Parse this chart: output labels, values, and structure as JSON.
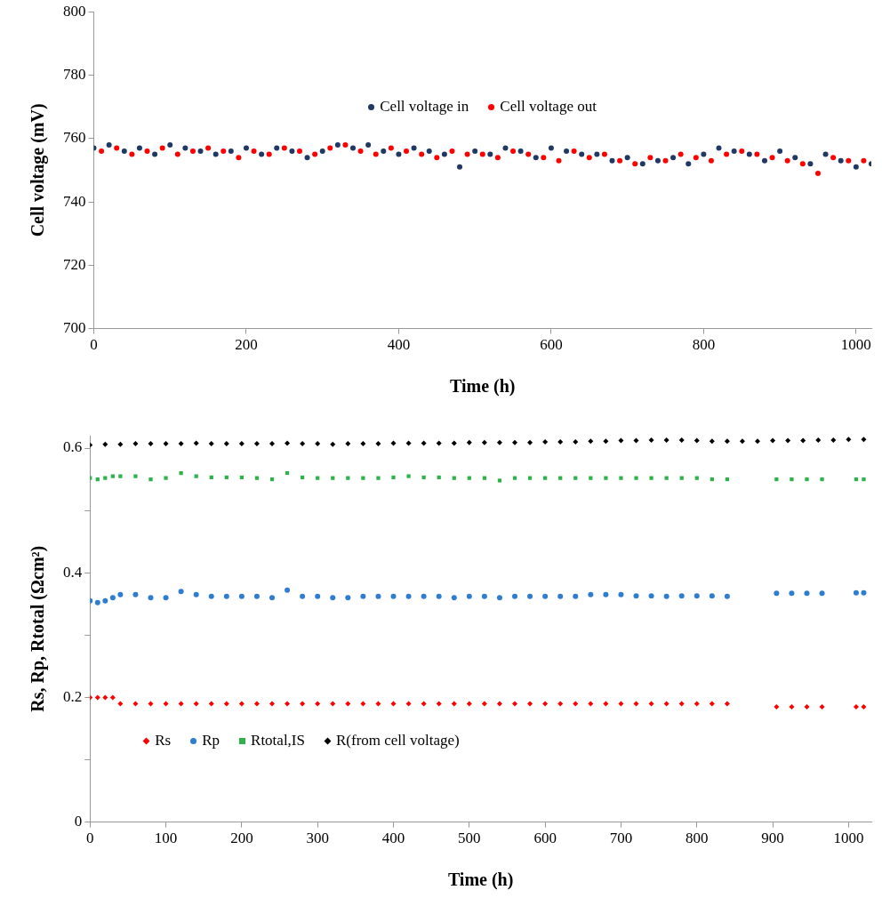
{
  "chart_data": [
    {
      "type": "scatter",
      "xlabel": "Time (h)",
      "ylabel": "Cell voltage (mV)",
      "xlim": [
        0,
        1020
      ],
      "xticks": [
        0,
        200,
        400,
        600,
        800,
        1000
      ],
      "ylim": [
        700,
        800
      ],
      "yticks": [
        700,
        720,
        740,
        760,
        780,
        800
      ],
      "grid": false,
      "legend": "top",
      "marker": "circle",
      "series": [
        {
          "name": "Cell voltage in",
          "color": "#1f3864",
          "x": [
            0,
            20,
            40,
            60,
            80,
            100,
            120,
            140,
            160,
            180,
            200,
            220,
            240,
            260,
            280,
            300,
            320,
            340,
            360,
            380,
            400,
            420,
            440,
            460,
            480,
            500,
            520,
            540,
            560,
            580,
            600,
            620,
            640,
            660,
            680,
            700,
            720,
            740,
            760,
            780,
            800,
            820,
            840,
            860,
            880,
            900,
            920,
            940,
            960,
            980,
            1000,
            1020
          ],
          "values": [
            757,
            758,
            756,
            757,
            755,
            758,
            757,
            756,
            755,
            756,
            757,
            755,
            757,
            756,
            754,
            756,
            758,
            757,
            758,
            756,
            755,
            757,
            756,
            755,
            751,
            756,
            755,
            757,
            756,
            754,
            757,
            756,
            755,
            755,
            753,
            754,
            752,
            753,
            754,
            752,
            755,
            757,
            756,
            755,
            753,
            756,
            754,
            752,
            755,
            753,
            751,
            752
          ]
        },
        {
          "name": "Cell voltage out",
          "color": "#ff0000",
          "x": [
            10,
            30,
            50,
            70,
            90,
            110,
            130,
            150,
            170,
            190,
            210,
            230,
            250,
            270,
            290,
            310,
            330,
            350,
            370,
            390,
            410,
            430,
            450,
            470,
            490,
            510,
            530,
            550,
            570,
            590,
            610,
            630,
            650,
            670,
            690,
            710,
            730,
            750,
            770,
            790,
            810,
            830,
            850,
            870,
            890,
            910,
            930,
            950,
            970,
            990,
            1010
          ],
          "values": [
            756,
            757,
            755,
            756,
            757,
            755,
            756,
            757,
            756,
            754,
            756,
            755,
            757,
            756,
            755,
            757,
            758,
            756,
            755,
            757,
            756,
            755,
            754,
            756,
            755,
            755,
            754,
            756,
            755,
            754,
            753,
            756,
            754,
            755,
            753,
            752,
            754,
            753,
            755,
            754,
            753,
            755,
            756,
            755,
            754,
            753,
            752,
            749,
            754,
            753,
            753
          ]
        }
      ]
    },
    {
      "type": "scatter",
      "xlabel": "Time (h)",
      "ylabel": "Rs, Rp, Rtotal (Ωcm²)",
      "xlim": [
        0,
        1030
      ],
      "xticks": [
        0,
        100,
        200,
        300,
        400,
        500,
        600,
        700,
        800,
        900,
        1000
      ],
      "ylim": [
        0,
        0.62
      ],
      "yticks": [
        0,
        {
          "value": 0.1,
          "label": null
        },
        0.2,
        {
          "value": 0.3,
          "label": null
        },
        0.4,
        {
          "value": 0.5,
          "label": null
        },
        0.6
      ],
      "grid": false,
      "legend": "bottom left",
      "series": [
        {
          "name": "Rs",
          "color": "#ff0000",
          "marker": "diamond",
          "x": [
            0,
            10,
            20,
            30,
            40,
            60,
            80,
            100,
            120,
            140,
            160,
            180,
            200,
            220,
            240,
            260,
            280,
            300,
            320,
            340,
            360,
            380,
            400,
            420,
            440,
            460,
            480,
            500,
            520,
            540,
            560,
            580,
            600,
            620,
            640,
            660,
            680,
            700,
            720,
            740,
            760,
            780,
            800,
            820,
            840,
            905,
            925,
            945,
            965,
            1010,
            1020
          ],
          "values": [
            0.2,
            0.2,
            0.2,
            0.2,
            0.19,
            0.19,
            0.19,
            0.19,
            0.19,
            0.19,
            0.19,
            0.19,
            0.19,
            0.19,
            0.19,
            0.19,
            0.19,
            0.19,
            0.19,
            0.19,
            0.19,
            0.19,
            0.19,
            0.19,
            0.19,
            0.19,
            0.19,
            0.19,
            0.19,
            0.19,
            0.19,
            0.19,
            0.19,
            0.19,
            0.19,
            0.19,
            0.19,
            0.19,
            0.19,
            0.19,
            0.19,
            0.19,
            0.19,
            0.19,
            0.19,
            0.185,
            0.185,
            0.185,
            0.185,
            0.185,
            0.185
          ]
        },
        {
          "name": "Rp",
          "color": "#2e7dd1",
          "marker": "circle",
          "x": [
            0,
            10,
            20,
            30,
            40,
            60,
            80,
            100,
            120,
            140,
            160,
            180,
            200,
            220,
            240,
            260,
            280,
            300,
            320,
            340,
            360,
            380,
            400,
            420,
            440,
            460,
            480,
            500,
            520,
            540,
            560,
            580,
            600,
            620,
            640,
            660,
            680,
            700,
            720,
            740,
            760,
            780,
            800,
            820,
            840,
            905,
            925,
            945,
            965,
            1010,
            1020
          ],
          "values": [
            0.355,
            0.352,
            0.355,
            0.36,
            0.365,
            0.365,
            0.36,
            0.36,
            0.37,
            0.365,
            0.362,
            0.362,
            0.362,
            0.362,
            0.36,
            0.372,
            0.362,
            0.362,
            0.36,
            0.36,
            0.362,
            0.362,
            0.362,
            0.362,
            0.362,
            0.362,
            0.36,
            0.362,
            0.362,
            0.36,
            0.362,
            0.362,
            0.362,
            0.362,
            0.362,
            0.365,
            0.365,
            0.365,
            0.363,
            0.363,
            0.362,
            0.363,
            0.363,
            0.363,
            0.362,
            0.367,
            0.367,
            0.367,
            0.367,
            0.368,
            0.368
          ]
        },
        {
          "name": "Rtotal,IS",
          "color": "#2db34a",
          "marker": "square",
          "x": [
            0,
            10,
            20,
            30,
            40,
            60,
            80,
            100,
            120,
            140,
            160,
            180,
            200,
            220,
            240,
            260,
            280,
            300,
            320,
            340,
            360,
            380,
            400,
            420,
            440,
            460,
            480,
            500,
            520,
            540,
            560,
            580,
            600,
            620,
            640,
            660,
            680,
            700,
            720,
            740,
            760,
            780,
            800,
            820,
            840,
            905,
            925,
            945,
            965,
            1010,
            1020
          ],
          "values": [
            0.552,
            0.55,
            0.552,
            0.555,
            0.555,
            0.555,
            0.55,
            0.552,
            0.56,
            0.555,
            0.553,
            0.553,
            0.553,
            0.552,
            0.55,
            0.56,
            0.553,
            0.552,
            0.552,
            0.552,
            0.552,
            0.552,
            0.553,
            0.555,
            0.553,
            0.553,
            0.552,
            0.552,
            0.552,
            0.548,
            0.552,
            0.552,
            0.552,
            0.552,
            0.552,
            0.552,
            0.552,
            0.552,
            0.552,
            0.552,
            0.552,
            0.552,
            0.552,
            0.55,
            0.55,
            0.55,
            0.55,
            0.55,
            0.55,
            0.55,
            0.55
          ]
        },
        {
          "name": "R(from cell voltage)",
          "color": "#000000",
          "marker": "diamond",
          "x": [
            0,
            20,
            40,
            60,
            80,
            100,
            120,
            140,
            160,
            180,
            200,
            220,
            240,
            260,
            280,
            300,
            320,
            340,
            360,
            380,
            400,
            420,
            440,
            460,
            480,
            500,
            520,
            540,
            560,
            580,
            600,
            620,
            640,
            660,
            680,
            700,
            720,
            740,
            760,
            780,
            800,
            820,
            840,
            860,
            880,
            900,
            920,
            940,
            960,
            980,
            1000,
            1020
          ],
          "values": [
            0.605,
            0.606,
            0.606,
            0.607,
            0.607,
            0.607,
            0.607,
            0.608,
            0.607,
            0.607,
            0.607,
            0.607,
            0.607,
            0.608,
            0.607,
            0.607,
            0.606,
            0.607,
            0.607,
            0.607,
            0.608,
            0.608,
            0.608,
            0.608,
            0.608,
            0.609,
            0.609,
            0.609,
            0.609,
            0.609,
            0.61,
            0.61,
            0.61,
            0.611,
            0.611,
            0.612,
            0.612,
            0.613,
            0.613,
            0.613,
            0.612,
            0.611,
            0.611,
            0.611,
            0.611,
            0.612,
            0.612,
            0.612,
            0.613,
            0.613,
            0.614,
            0.614
          ]
        }
      ]
    }
  ]
}
